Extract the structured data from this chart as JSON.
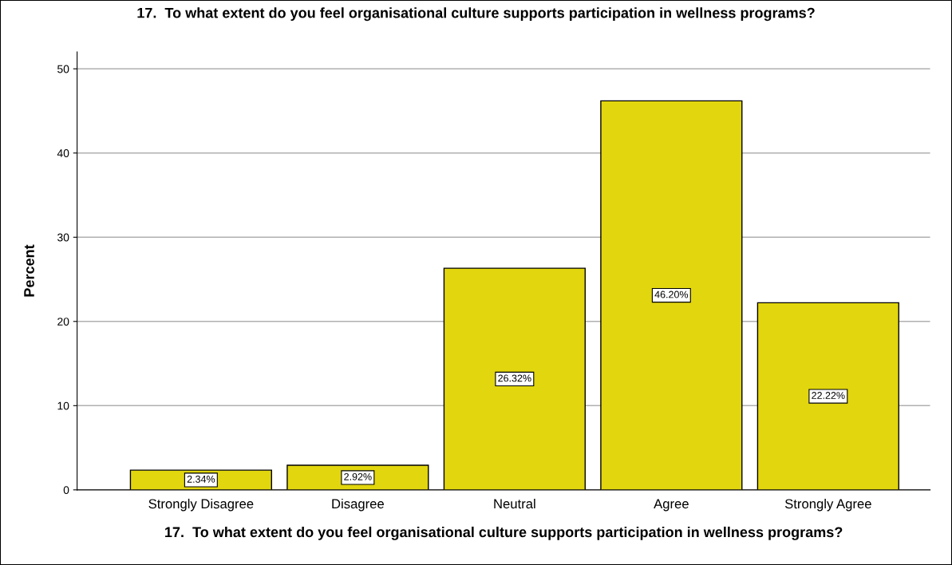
{
  "chart_data": {
    "type": "bar",
    "title": "17.  To what extent do you feel organisational culture supports participation in wellness programs?",
    "xlabel": "17.  To what extent do you feel organisational culture supports participation in wellness programs?",
    "ylabel": "Percent",
    "categories": [
      "Strongly Disagree",
      "Disagree",
      "Neutral",
      "Agree",
      "Strongly Agree"
    ],
    "values": [
      2.34,
      2.92,
      26.32,
      46.2,
      22.22
    ],
    "value_labels": [
      "2.34%",
      "2.92%",
      "26.32%",
      "46.20%",
      "22.22%"
    ],
    "color": "#e2d60e",
    "ylim": [
      0,
      52
    ],
    "yticks": [
      0,
      10,
      20,
      30,
      40,
      50
    ],
    "grid": "y",
    "legend": false
  }
}
